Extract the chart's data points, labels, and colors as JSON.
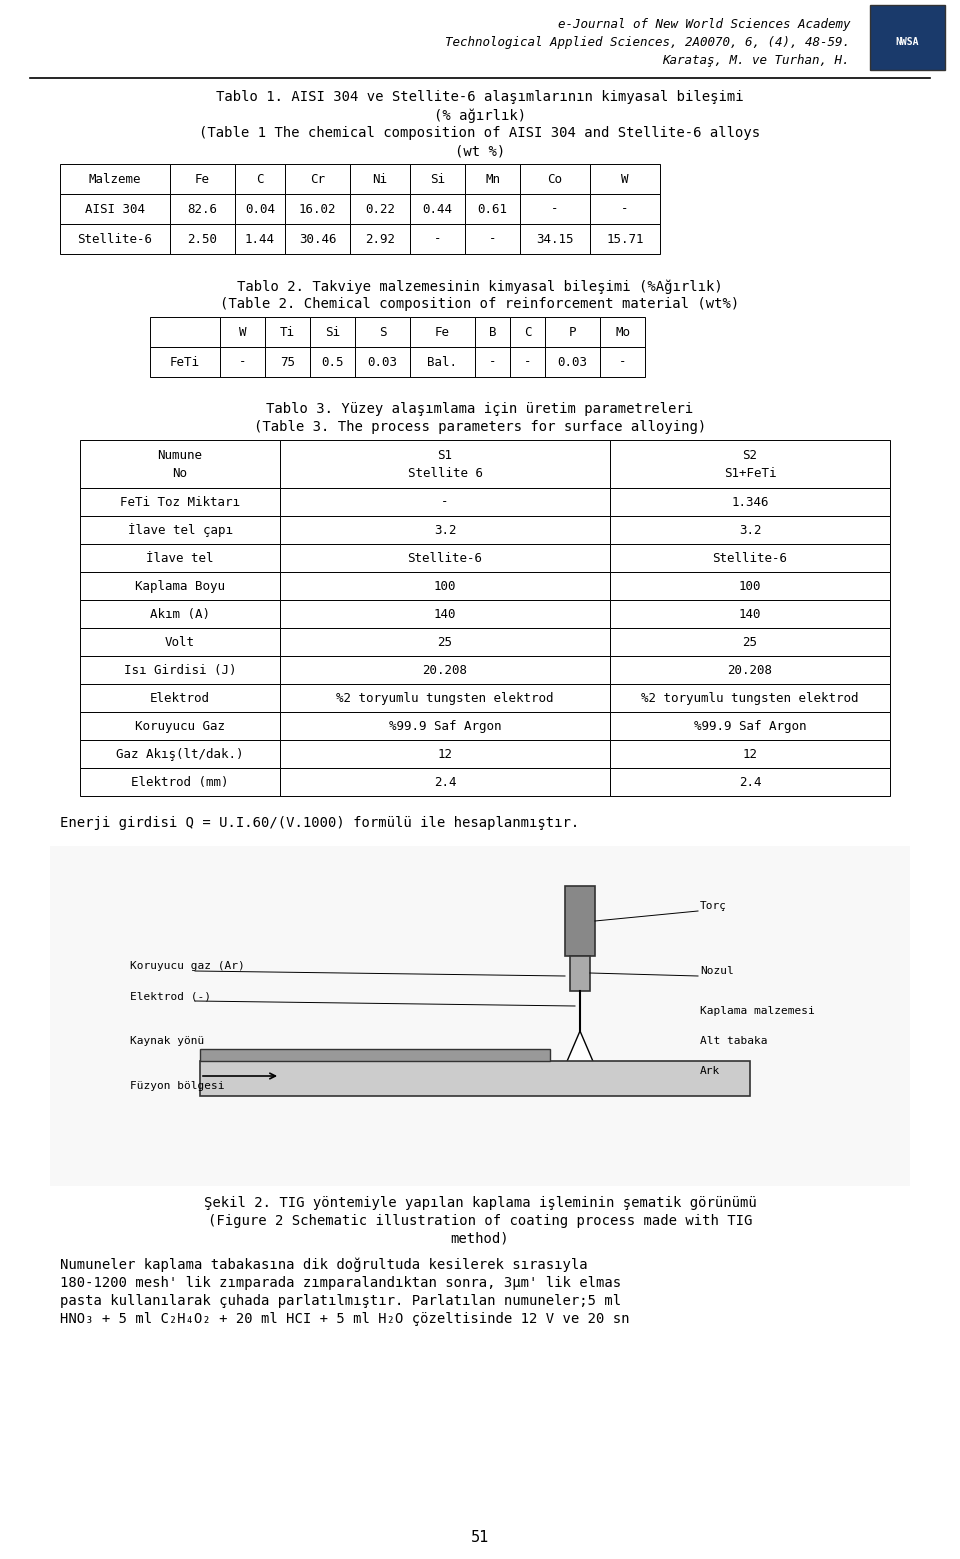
{
  "header_line1": "e-Journal of New World Sciences Academy",
  "header_line2": "Technological Applied Sciences, 2A0070, 6, (4), 48-59.",
  "header_line3": "Karataş, M. ve Turhan, H.",
  "tablo1_title1": "Tablo 1. AISI 304 ve Stellite-6 alaşımlarının kimyasal bileşimi",
  "tablo1_title2": "(% ağırlık)",
  "tablo1_title3": "(Table 1 The chemical composition of AISI 304 and Stellite-6 alloys",
  "tablo1_title4": "(wt %)",
  "tablo1_headers": [
    "Malzeme",
    "Fe",
    "C",
    "Cr",
    "Ni",
    "Si",
    "Mn",
    "Co",
    "W"
  ],
  "tablo1_rows": [
    [
      "AISI 304",
      "82.6",
      "0.04",
      "16.02",
      "0.22",
      "0.44",
      "0.61",
      "-",
      "-"
    ],
    [
      "Stellite-6",
      "2.50",
      "1.44",
      "30.46",
      "2.92",
      "-",
      "-",
      "34.15",
      "15.71"
    ]
  ],
  "tablo2_title1": "Tablo 2. Takviye malzemesinin kimyasal bileşimi (%Ağırlık)",
  "tablo2_title2": "(Table 2. Chemical composition of reinforcement material (wt%)",
  "tablo2_headers": [
    "",
    "W",
    "Ti",
    "Si",
    "S",
    "Fe",
    "B",
    "C",
    "P",
    "Mo"
  ],
  "tablo2_rows": [
    [
      "FeTi",
      "-",
      "75",
      "0.5",
      "0.03",
      "Bal.",
      "-",
      "-",
      "0.03",
      "-"
    ]
  ],
  "tablo3_title1": "Tablo 3. Yüzey alaşımlama için üretim parametreleri",
  "tablo3_title2": "(Table 3. The process parameters for surface alloying)",
  "tablo3_headers": [
    "Numune\nNo",
    "S1\nStellite 6",
    "S2\nS1+FeTi"
  ],
  "tablo3_rows": [
    [
      "FeTi Toz Miktarı",
      "-",
      "1.346"
    ],
    [
      "İlave tel çapı",
      "3.2",
      "3.2"
    ],
    [
      "İlave tel",
      "Stellite-6",
      "Stellite-6"
    ],
    [
      "Kaplama Boyu",
      "100",
      "100"
    ],
    [
      "Akım (A)",
      "140",
      "140"
    ],
    [
      "Volt",
      "25",
      "25"
    ],
    [
      "Isı Girdisi (J)",
      "20.208",
      "20.208"
    ],
    [
      "Elektrod",
      "%2 toryumlu tungsten elektrod",
      "%2 toryumlu tungsten elektrod"
    ],
    [
      "Koruyucu Gaz",
      "%99.9 Saf Argon",
      "%99.9 Saf Argon"
    ],
    [
      "Gaz Akış(lt/dak.)",
      "12",
      "12"
    ],
    [
      "Elektrod (mm)",
      "2.4",
      "2.4"
    ]
  ],
  "energy_text": "Enerji girdisi Q = U.I.60/(V.1000) formülü ile hesaplanmıştır.",
  "sekil2_caption1": "Şekil 2. TIG yöntemiyle yapılan kaplama işleminin şematik görünümü",
  "sekil2_caption2": "(Figure 2 Schematic illustration of coating process made with TIG",
  "sekil2_caption3": "method)",
  "bottom_text1": "Numuneler kaplama tabakasına dik doğrultuda kesilerek sırasıyla",
  "bottom_text2": "180-1200 mesh' lik zımparada zımparalandıktan sonra, 3μm' lik elmas",
  "bottom_text3": "pasta kullanılarak çuhada parlatılmıştır. Parlatılan numuneler;5 ml",
  "bottom_text4": "HNO₃ + 5 ml C₂H₄O₂ + 20 ml HCI + 5 ml H₂O çözeltisinde 12 V ve 20 sn",
  "page_number": "51",
  "bg_color": "#ffffff",
  "text_color": "#000000",
  "font_family": "monospace"
}
